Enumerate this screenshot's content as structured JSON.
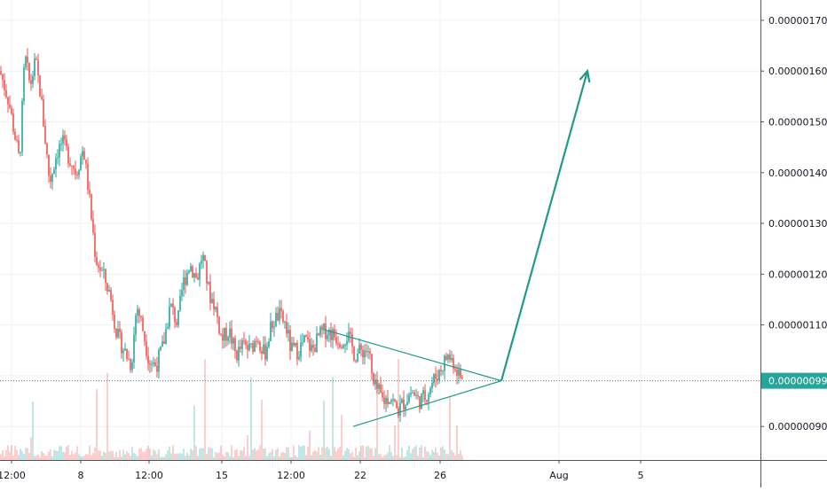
{
  "chart_data": {
    "type": "candlestick",
    "x_ticks": [
      "12:00",
      "8",
      "12:00",
      "15",
      "12:00",
      "22",
      "26",
      "Aug",
      "5"
    ],
    "y_ticks": [
      "0.00000170",
      "0.00000160",
      "0.00000150",
      "0.00000140",
      "0.00000130",
      "0.00000120",
      "0.00000110",
      "0.00000090"
    ],
    "y_tick_values": [
      1.7,
      1.6,
      1.5,
      1.4,
      1.3,
      1.2,
      1.1,
      0.9
    ],
    "y_range": [
      0.834,
      1.74
    ],
    "y_scale_exponent": "e-6",
    "last_price": {
      "label": "0.00000099",
      "value": 0.99
    },
    "colors": {
      "up": "#26a69a",
      "down": "#ef5350",
      "projection": "#22998a",
      "grid": "#eef1f5",
      "price_line": "#1e9688",
      "price_tag_bg": "#26a69a"
    },
    "close_path": [
      [
        0,
        1.6
      ],
      [
        10,
        1.54
      ],
      [
        22,
        1.42
      ],
      [
        28,
        1.63
      ],
      [
        34,
        1.57
      ],
      [
        40,
        1.62
      ],
      [
        46,
        1.55
      ],
      [
        56,
        1.38
      ],
      [
        64,
        1.44
      ],
      [
        70,
        1.46
      ],
      [
        78,
        1.43
      ],
      [
        86,
        1.4
      ],
      [
        94,
        1.45
      ],
      [
        100,
        1.36
      ],
      [
        108,
        1.23
      ],
      [
        116,
        1.2
      ],
      [
        124,
        1.16
      ],
      [
        132,
        1.08
      ],
      [
        140,
        1.05
      ],
      [
        148,
        1.02
      ],
      [
        154,
        1.14
      ],
      [
        160,
        1.1
      ],
      [
        168,
        1.03
      ],
      [
        176,
        1.02
      ],
      [
        184,
        1.06
      ],
      [
        192,
        1.14
      ],
      [
        200,
        1.1
      ],
      [
        206,
        1.18
      ],
      [
        214,
        1.22
      ],
      [
        222,
        1.19
      ],
      [
        228,
        1.24
      ],
      [
        236,
        1.16
      ],
      [
        242,
        1.14
      ],
      [
        250,
        1.07
      ],
      [
        258,
        1.09
      ],
      [
        266,
        1.04
      ],
      [
        274,
        1.06
      ],
      [
        282,
        1.05
      ],
      [
        290,
        1.08
      ],
      [
        298,
        1.04
      ],
      [
        306,
        1.1
      ],
      [
        314,
        1.12
      ],
      [
        322,
        1.1
      ],
      [
        328,
        1.05
      ],
      [
        336,
        1.05
      ],
      [
        344,
        1.07
      ],
      [
        352,
        1.05
      ],
      [
        360,
        1.08
      ],
      [
        368,
        1.09
      ],
      [
        376,
        1.08
      ],
      [
        384,
        1.07
      ],
      [
        392,
        1.08
      ],
      [
        400,
        1.04
      ],
      [
        408,
        1.05
      ],
      [
        416,
        1.05
      ],
      [
        420,
        0.98
      ],
      [
        426,
        0.97
      ],
      [
        432,
        0.95
      ],
      [
        440,
        0.96
      ],
      [
        448,
        0.93
      ],
      [
        456,
        0.95
      ],
      [
        464,
        0.97
      ],
      [
        472,
        0.95
      ],
      [
        480,
        0.96
      ],
      [
        488,
        0.99
      ],
      [
        496,
        1.01
      ],
      [
        504,
        1.04
      ],
      [
        510,
        1.03
      ],
      [
        516,
        1.01
      ],
      [
        520,
        0.99
      ],
      [
        522,
        0.99
      ]
    ],
    "triangle": {
      "upper": [
        [
          365,
          1.091
        ],
        [
          565,
          0.99
        ]
      ],
      "lower": [
        [
          398,
          0.9
        ],
        [
          565,
          0.99
        ]
      ]
    },
    "projection_arrow": {
      "from": [
        565,
        0.99
      ],
      "to": [
        662,
        1.6
      ]
    }
  }
}
